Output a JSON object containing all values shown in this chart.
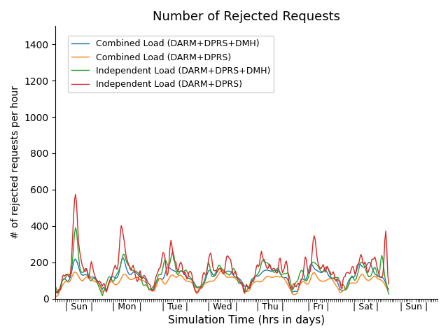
{
  "title": "Number of Rejected Requests",
  "xlabel": "Simulation Time (hrs in days)",
  "ylabel": "# of rejected requests per hour",
  "ylim": [
    0,
    1500
  ],
  "yticks": [
    0,
    200,
    400,
    600,
    800,
    1000,
    1200,
    1400
  ],
  "days": [
    "Sun",
    "Mon",
    "Tue",
    "Wed",
    "Thu",
    "Fri",
    "Sat",
    "Sun"
  ],
  "colors": {
    "combined_dmh": "#1f77b4",
    "combined": "#ff7f0e",
    "independent_dmh": "#2ca02c",
    "independent": "#d62728"
  },
  "legend_labels": [
    "Combined Load (DARM+DPRS+DMH)",
    "Combined Load (DARM+DPRS)",
    "Independent Load (DARM+DPRS+DMH)",
    "Independent Load (DARM+DPRS)"
  ],
  "n_hours": 168,
  "figsize": [
    6.4,
    4.8
  ],
  "dpi": 100,
  "title_fontsize": 13,
  "legend_fontsize": 9,
  "xlabel_fontsize": 11,
  "ylabel_fontsize": 10
}
